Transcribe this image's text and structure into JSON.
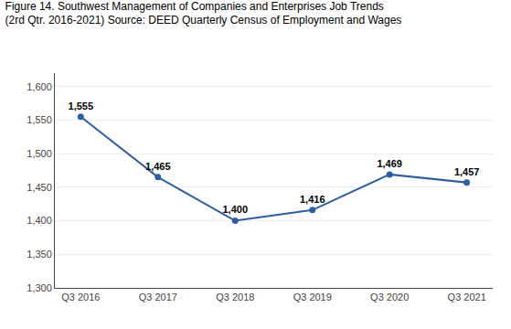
{
  "chart_data": {
    "type": "line",
    "title": "Figure 14. Southwest Management of Companies and Enterprises Job Trends",
    "subtitle": "(2rd Qtr. 2016-2021) Source: DEED Quarterly Census of Employment and Wages",
    "categories": [
      "Q3 2016",
      "Q3 2017",
      "Q3 2018",
      "Q3 2019",
      "Q3 2020",
      "Q3 2021"
    ],
    "values": [
      1555,
      1465,
      1400,
      1416,
      1469,
      1457
    ],
    "value_labels": [
      "1,555",
      "1,465",
      "1,400",
      "1,416",
      "1,469",
      "1,457"
    ],
    "data_labels": true,
    "color": "#2E5FA3",
    "marker": "circle",
    "ylim": [
      1300,
      1620
    ],
    "yticks": [
      {
        "value": 1300,
        "label": "1,300"
      },
      {
        "value": 1350,
        "label": "1,350"
      },
      {
        "value": 1400,
        "label": "1,400"
      },
      {
        "value": 1450,
        "label": "1,450"
      },
      {
        "value": 1500,
        "label": "1,500"
      },
      {
        "value": 1550,
        "label": "1,550"
      },
      {
        "value": 1600,
        "label": "1,600"
      }
    ],
    "grid": true
  }
}
